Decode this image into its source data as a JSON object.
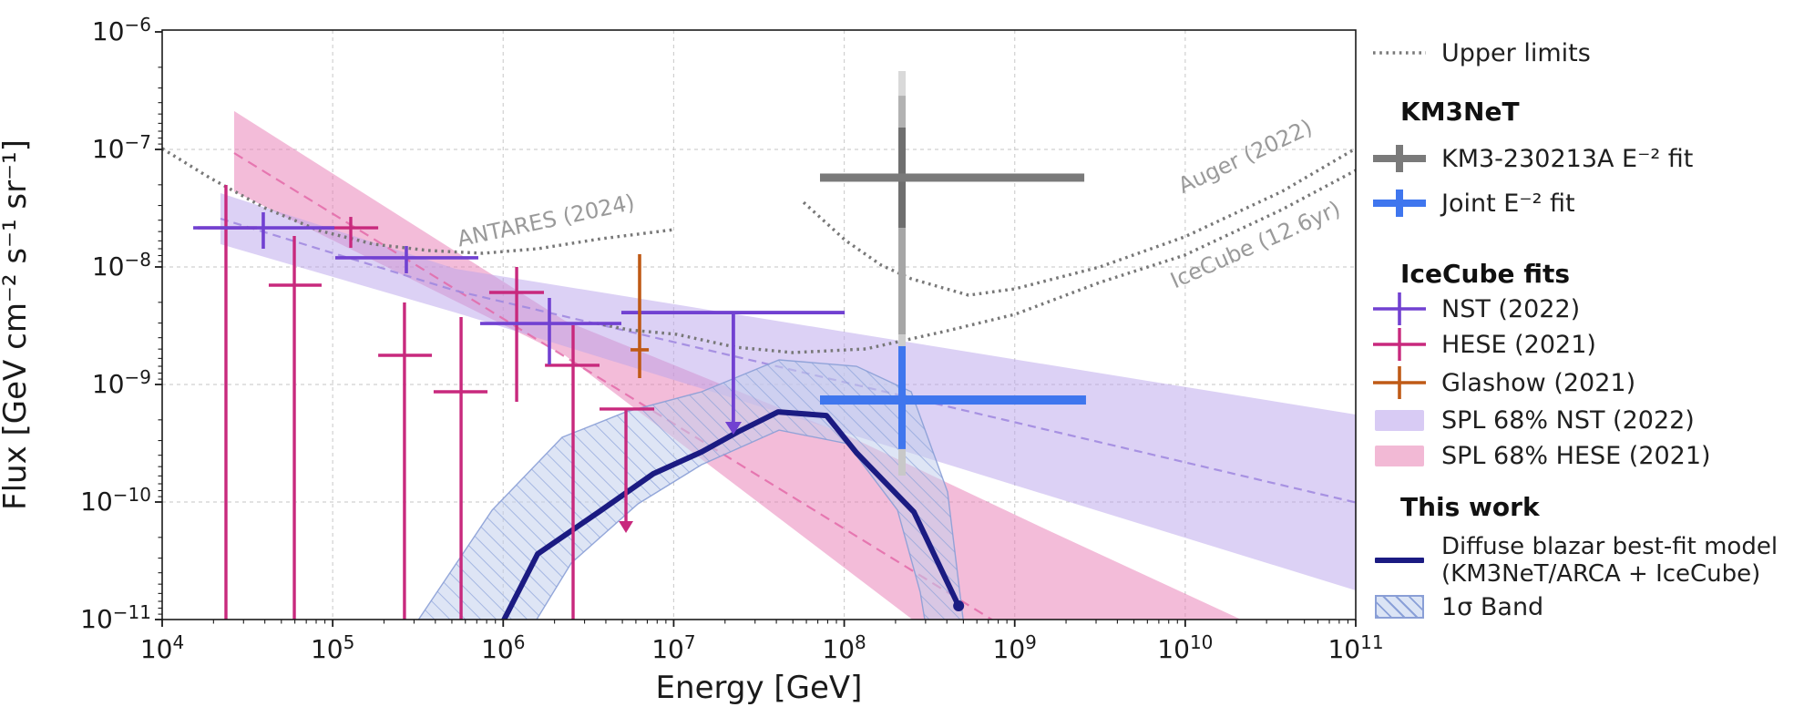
{
  "figure": {
    "background": "#ffffff"
  },
  "colors": {
    "nst": "#7141d1",
    "hese": "#c8297d",
    "glashow": "#bf5a16",
    "km3_gray": "#7a7a7a",
    "joint_blue": "#3f76ee",
    "navy": "#1b1b82",
    "nst_band": "#b9a3ec",
    "hese_band": "#e87ab3",
    "nst_band_legend": "#d8cbf4",
    "hese_band_legend": "#f2b9d5",
    "nst_dash": "#a18ae0",
    "hese_dash": "#e36aa8",
    "sigma_fill": "#c3d0ec",
    "sigma_fill_legend": "#dbe4f5",
    "sigma_hatch": "#8aa0d8",
    "sigma_edge": "#8a9fd6",
    "limit_dotted": "#787878",
    "annotation": "#9a9a9a",
    "grid": "#c8c8c8",
    "text": "#1a1a1a"
  },
  "legend": {
    "upper_limits": "Upper limits",
    "km3net_header": "KM3NeT",
    "km3_fit": "KM3-230213A E⁻² fit",
    "joint_fit": "Joint E⁻² fit",
    "icecube_header": "IceCube fits",
    "nst": "NST (2022)",
    "hese": "HESE (2021)",
    "glashow": "Glashow (2021)",
    "spl_nst": "SPL 68% NST (2022)",
    "spl_hese": "SPL 68% HESE (2021)",
    "this_work_header": "This work",
    "blazar_line1": "Diffuse blazar best-fit model",
    "blazar_line2": "(KM3NeT/ARCA + IceCube)",
    "sigma_band": "1σ Band"
  },
  "chart_data": {
    "type": "line",
    "title": "",
    "xlabel": "Energy [GeV]",
    "ylabel": "Flux [GeV cm⁻² s⁻¹ sr⁻¹]",
    "xlim_log10": [
      4,
      11
    ],
    "ylim_log10": [
      -11,
      -6
    ],
    "grid": true,
    "legend_position": "right",
    "x_ticks": [
      {
        "v": 4,
        "exp": "4"
      },
      {
        "v": 5,
        "exp": "5"
      },
      {
        "v": 6,
        "exp": "6"
      },
      {
        "v": 7,
        "exp": "7"
      },
      {
        "v": 8,
        "exp": "8"
      },
      {
        "v": 9,
        "exp": "9"
      },
      {
        "v": 10,
        "exp": "10"
      },
      {
        "v": 11,
        "exp": "11"
      }
    ],
    "y_ticks": [
      {
        "v": -6,
        "exp": "−6"
      },
      {
        "v": -7,
        "exp": "−7"
      },
      {
        "v": -8,
        "exp": "−8"
      },
      {
        "v": -9,
        "exp": "−9"
      },
      {
        "v": -10,
        "exp": "−10"
      },
      {
        "v": -11,
        "exp": "−11"
      }
    ],
    "series": {
      "nst_band": {
        "upper": [
          [
            4.342,
            -7.372
          ],
          [
            5.721,
            -8.016
          ],
          [
            11,
            -9.256
          ]
        ],
        "lower": [
          [
            4.342,
            -7.806
          ],
          [
            5.721,
            -8.388
          ],
          [
            11,
            -10.752
          ]
        ],
        "center": [
          [
            4.342,
            -7.589
          ],
          [
            5.721,
            -8.202
          ],
          [
            11,
            -10.004
          ]
        ]
      },
      "hese_band": {
        "upper": [
          [
            4.422,
            -6.674
          ],
          [
            6.362,
            -8.457
          ],
          [
            8.019,
            -9.434
          ],
          [
            9.195,
            -10.24
          ],
          [
            10.403,
            -11.05
          ]
        ],
        "lower": [
          [
            4.422,
            -7.357
          ],
          [
            6.362,
            -8.752
          ],
          [
            8.446,
            -11.05
          ]
        ],
        "center": [
          [
            4.422,
            -7.031
          ],
          [
            8.922,
            -11.05
          ]
        ]
      },
      "sigma_band": {
        "upper": [
          [
            5.48,
            -11.05
          ],
          [
            5.935,
            -10.07
          ],
          [
            6.346,
            -9.45
          ],
          [
            6.72,
            -9.233
          ],
          [
            7.164,
            -9.062
          ],
          [
            7.618,
            -8.791
          ],
          [
            8.072,
            -8.845
          ],
          [
            8.393,
            -9.062
          ],
          [
            8.606,
            -9.914
          ],
          [
            8.702,
            -11.05
          ]
        ],
        "lower": [
          [
            6.175,
            -11.05
          ],
          [
            6.399,
            -10.519
          ],
          [
            6.79,
            -10.016
          ],
          [
            7.164,
            -9.682
          ],
          [
            7.618,
            -9.388
          ],
          [
            8.019,
            -9.504
          ],
          [
            8.313,
            -10.07
          ],
          [
            8.446,
            -10.767
          ],
          [
            8.478,
            -11.05
          ]
        ]
      },
      "blazar_model": {
        "points": [
          [
            5.988,
            -11.05
          ],
          [
            6.202,
            -10.442
          ],
          [
            6.56,
            -10.085
          ],
          [
            6.88,
            -9.76
          ],
          [
            7.164,
            -9.574
          ],
          [
            7.377,
            -9.403
          ],
          [
            7.613,
            -9.233
          ],
          [
            7.896,
            -9.264
          ],
          [
            8.072,
            -9.581
          ],
          [
            8.409,
            -10.085
          ],
          [
            8.671,
            -10.884
          ]
        ],
        "end_dot": [
          8.671,
          -10.884
        ]
      },
      "antares_limit": [
        [
          4,
          -6.992
        ],
        [
          4.278,
          -7.24
        ],
        [
          4.599,
          -7.496
        ],
        [
          4.919,
          -7.69
        ],
        [
          5.24,
          -7.806
        ],
        [
          5.56,
          -7.86
        ],
        [
          5.881,
          -7.884
        ],
        [
          6.202,
          -7.845
        ],
        [
          6.576,
          -7.76
        ],
        [
          7.003,
          -7.682
        ]
      ],
      "auger_limit": [
        [
          7.762,
          -7.45
        ],
        [
          8.008,
          -7.775
        ],
        [
          8.216,
          -7.984
        ],
        [
          8.393,
          -8.101
        ],
        [
          8.729,
          -8.24
        ],
        [
          9.002,
          -8.186
        ],
        [
          9.499,
          -8.0
        ],
        [
          9.996,
          -7.744
        ],
        [
          10.568,
          -7.357
        ],
        [
          11,
          -6.992
        ]
      ],
      "icecube_limit": [
        [
          6.55,
          -8.48
        ],
        [
          6.736,
          -8.535
        ],
        [
          7.019,
          -8.574
        ],
        [
          7.361,
          -8.682
        ],
        [
          7.698,
          -8.729
        ],
        [
          8.126,
          -8.698
        ],
        [
          8.606,
          -8.543
        ],
        [
          9.002,
          -8.403
        ],
        [
          9.499,
          -8.132
        ],
        [
          9.996,
          -7.9
        ],
        [
          10.568,
          -7.512
        ],
        [
          11,
          -7.178
        ]
      ],
      "nst_points": [
        {
          "x": 4.593,
          "xlo": 4.182,
          "xhi": 5.01,
          "y": -7.667,
          "yhi": -7.535,
          "ylo": -7.845
        },
        {
          "x": 5.432,
          "xlo": 5.015,
          "xhi": 5.854,
          "y": -7.922,
          "yhi": -7.822,
          "ylo": -8.054
        },
        {
          "x": 6.271,
          "xlo": 5.865,
          "xhi": 6.693,
          "y": -8.481,
          "yhi": -8.264,
          "ylo": -8.829
        }
      ],
      "nst_upper_limit": {
        "x": 7.35,
        "xlo": 6.693,
        "xhi": 8.003,
        "y": -8.388,
        "tip": -9.426
      },
      "hese_points": [
        {
          "x": 4.374,
          "xlo": 4.208,
          "xhi": 4.556,
          "y": -7.667,
          "yhi": -7.302,
          "ylo": -11.05
        },
        {
          "x": 4.775,
          "xlo": 4.625,
          "xhi": 4.935,
          "y": -8.155,
          "yhi": -7.736,
          "ylo": -11.05
        },
        {
          "x": 5.106,
          "xlo": 4.935,
          "xhi": 5.267,
          "y": -7.667,
          "yhi": -7.574,
          "ylo": -7.837
        },
        {
          "x": 5.421,
          "xlo": 5.267,
          "xhi": 5.582,
          "y": -8.752,
          "yhi": -8.302,
          "ylo": -11.05
        },
        {
          "x": 5.753,
          "xlo": 5.592,
          "xhi": 5.908,
          "y": -9.062,
          "yhi": -8.426,
          "ylo": -11.05
        },
        {
          "x": 6.079,
          "xlo": 5.918,
          "xhi": 6.239,
          "y": -8.217,
          "yhi": -8.0,
          "ylo": -9.147
        },
        {
          "x": 6.41,
          "xlo": 6.245,
          "xhi": 6.565,
          "y": -8.837,
          "yhi": -8.496,
          "ylo": -11.05
        }
      ],
      "hese_upper_limit": {
        "x": 6.72,
        "xlo": 6.565,
        "xhi": 6.886,
        "y": -9.209,
        "tip": -10.264
      },
      "glashow_point": {
        "x": 6.8,
        "xlo": 6.747,
        "xhi": 6.854,
        "y": -8.705,
        "yhi": -7.891,
        "ylo": -8.946
      },
      "km3net_event": {
        "x": 8.339,
        "xlo": 7.858,
        "xhi": 9.408,
        "y": -7.24,
        "vertical_segments": [
          {
            "from": -6.333,
            "to": -6.543,
            "color": "#d9d9d9"
          },
          {
            "from": -6.543,
            "to": -6.814,
            "color": "#b2b2b2"
          },
          {
            "from": -6.814,
            "to": -7.667,
            "color": "#6f6f6f"
          },
          {
            "from": -7.667,
            "to": -8.574,
            "color": "#a6a6a6"
          },
          {
            "from": -8.574,
            "to": -8.674,
            "color": "#cdcdcd"
          }
        ]
      },
      "joint_fit": {
        "x": 8.339,
        "xlo": 7.858,
        "xhi": 9.418,
        "y": -9.132,
        "yhi": -8.674,
        "ylo": -9.55,
        "tail_to": -9.775
      }
    },
    "annotations": [
      {
        "text": "ANTARES (2024)",
        "x": 6.26,
        "y": -7.667,
        "rot": -12
      },
      {
        "text": "Auger (2022)",
        "x": 10.37,
        "y": -7.116,
        "rot": -25
      },
      {
        "text": "IceCube (12.6yr)",
        "x": 10.429,
        "y": -7.868,
        "rot": -24
      }
    ]
  }
}
